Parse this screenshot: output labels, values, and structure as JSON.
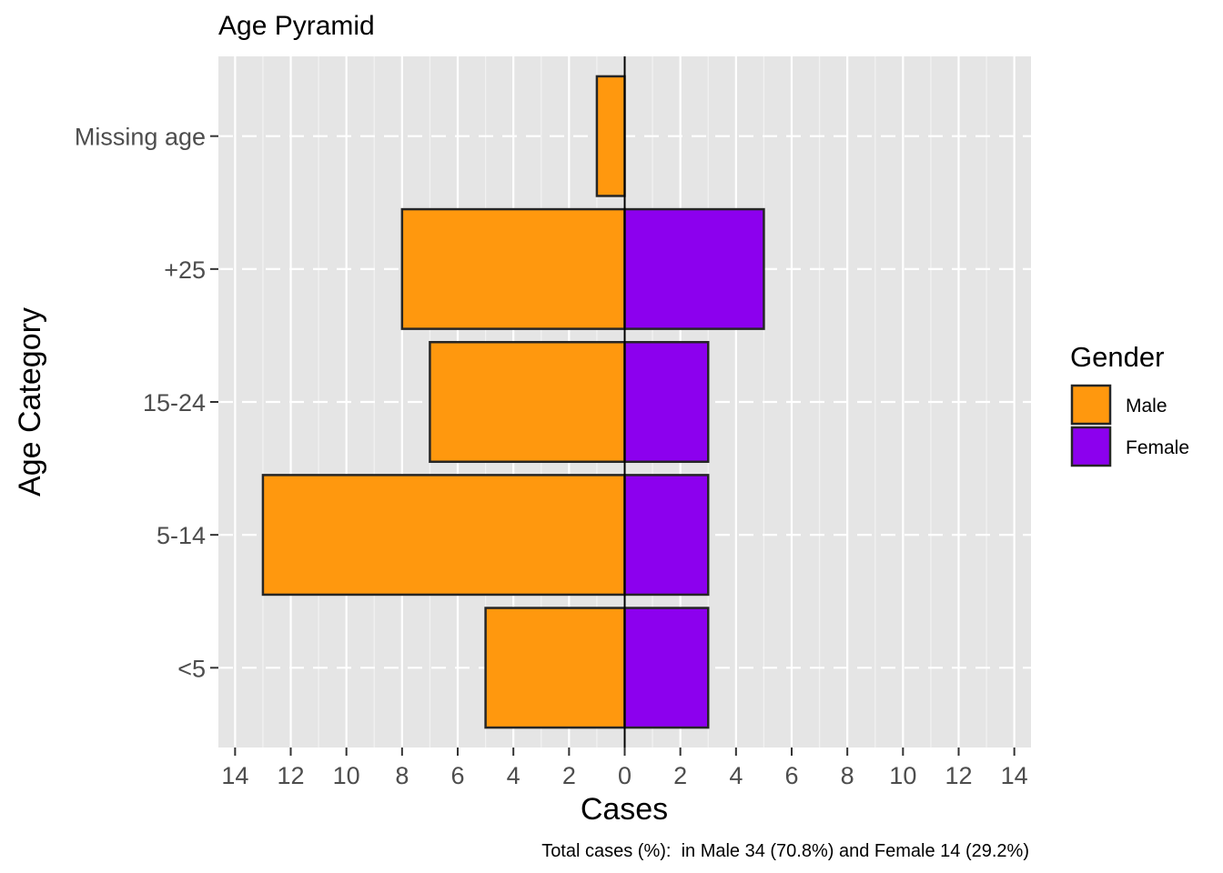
{
  "chart_data": {
    "type": "bar",
    "orientation": "horizontal-diverging",
    "title": "Age Pyramid",
    "xlabel": "Cases",
    "ylabel": "Age Category",
    "caption": "Total cases (%):  in Male 34 (70.8%) and Female 14 (29.2%)",
    "categories": [
      "<5",
      "5-14",
      "15-24",
      "+25",
      "Missing age"
    ],
    "series": [
      {
        "name": "Male",
        "color": "#FF980E",
        "side": "left",
        "values": [
          5,
          13,
          7,
          8,
          1
        ]
      },
      {
        "name": "Female",
        "color": "#8C00EE",
        "side": "right",
        "values": [
          3,
          3,
          3,
          5,
          0
        ]
      }
    ],
    "xlim": [
      -14.6,
      14.6
    ],
    "x_ticks": [
      -14,
      -12,
      -10,
      -8,
      -6,
      -4,
      -2,
      0,
      2,
      4,
      6,
      8,
      10,
      12,
      14
    ],
    "x_tick_labels": [
      "14",
      "12",
      "10",
      "8",
      "6",
      "4",
      "2",
      "0",
      "2",
      "4",
      "6",
      "8",
      "10",
      "12",
      "14"
    ],
    "grid": true,
    "legend": {
      "title": "Gender",
      "position": "right"
    },
    "panel_color": "#E5E5E5"
  }
}
